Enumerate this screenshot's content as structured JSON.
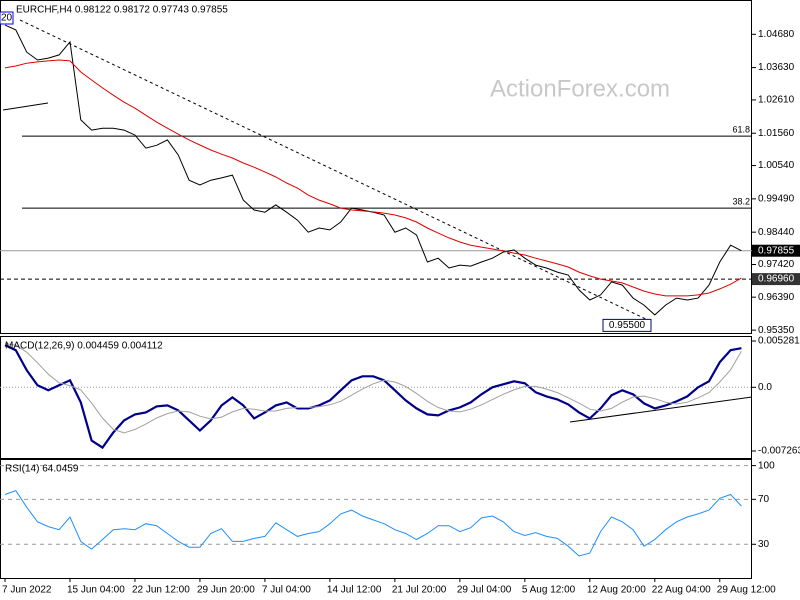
{
  "chart_data": [
    {
      "type": "line",
      "title": "EURCHF,H4  0.98122 0.98172 0.97743 0.97855",
      "corner_label": "20",
      "watermark": "ActionForex.com",
      "ylim": [
        0.9526,
        1.0573
      ],
      "yticks": [
        {
          "value": 1.0468,
          "label": "1.04680"
        },
        {
          "value": 1.0363,
          "label": "1.03630"
        },
        {
          "value": 1.0261,
          "label": "1.02610"
        },
        {
          "value": 1.0156,
          "label": "1.01560"
        },
        {
          "value": 1.0054,
          "label": "1.00540"
        },
        {
          "value": 0.9949,
          "label": "0.99490"
        },
        {
          "value": 0.9844,
          "label": "0.98440"
        },
        {
          "value": 0.9742,
          "label": "0.97420"
        },
        {
          "value": 0.9639,
          "label": "0.96390"
        },
        {
          "value": 0.9535,
          "label": "0.95350"
        }
      ],
      "series": [
        {
          "color": "#000000",
          "line_width": 1,
          "values": [
            1.0497,
            1.0482,
            1.0412,
            1.0387,
            1.0393,
            1.0403,
            1.0444,
            1.0198,
            1.0166,
            1.0172,
            1.0172,
            1.0166,
            1.015,
            1.0109,
            1.0118,
            1.0135,
            1.0087,
            1.0008,
            0.9993,
            1.0008,
            1.0015,
            1.0024,
            0.9945,
            0.9914,
            0.9907,
            0.993,
            0.9907,
            0.9882,
            0.9844,
            0.9857,
            0.9851,
            0.9876,
            0.992,
            0.9914,
            0.9907,
            0.9898,
            0.9844,
            0.9857,
            0.9835,
            0.975,
            0.9762,
            0.9731,
            0.974,
            0.9737,
            0.975,
            0.9762,
            0.9781,
            0.9788,
            0.9762,
            0.974,
            0.9731,
            0.9718,
            0.9709,
            0.9662,
            0.963,
            0.9646,
            0.9687,
            0.9677,
            0.9636,
            0.9614,
            0.9583,
            0.9614,
            0.9636,
            0.963,
            0.9636,
            0.9677,
            0.975,
            0.9803,
            0.97855
          ]
        },
        {
          "color": "#e00000",
          "line_width": 1,
          "values": [
            1.0362,
            1.0368,
            1.0377,
            1.0381,
            1.0384,
            1.0387,
            1.0384,
            1.0349,
            1.0324,
            1.0299,
            1.0276,
            1.0254,
            1.0235,
            1.0213,
            1.0191,
            1.0172,
            1.0153,
            1.0135,
            1.0119,
            1.0103,
            1.009,
            1.0078,
            1.0062,
            1.0049,
            1.0034,
            1.0018,
            0.9999,
            0.9983,
            0.9961,
            0.9945,
            0.9933,
            0.992,
            0.9914,
            0.9911,
            0.9908,
            0.9904,
            0.9898,
            0.9889,
            0.9876,
            0.9857,
            0.9841,
            0.9826,
            0.9813,
            0.9803,
            0.9797,
            0.9791,
            0.9785,
            0.9778,
            0.9772,
            0.9762,
            0.9753,
            0.9744,
            0.9734,
            0.9718,
            0.9706,
            0.9696,
            0.969,
            0.9684,
            0.9671,
            0.9658,
            0.9649,
            0.9643,
            0.9643,
            0.9643,
            0.9646,
            0.9652,
            0.9665,
            0.968,
            0.9699
          ]
        }
      ],
      "levels": [
        {
          "value": 0.97855,
          "label": "0.97855",
          "color": "#000000",
          "line_color": "#999999",
          "dashed": false
        },
        {
          "value": 0.9696,
          "label": "0.96960",
          "color": "#333333",
          "line_color": "#000000",
          "dashed": true
        }
      ],
      "fib_lines": [
        {
          "value": 1.0147,
          "label": "61.8"
        },
        {
          "value": 0.992,
          "label": "38.2"
        }
      ],
      "low_label": {
        "value": 0.955,
        "label": "0.95500"
      }
    },
    {
      "type": "line",
      "title": "MACD(12,26,9) 0.004459 0.004112",
      "ylim": [
        -0.008061,
        0.005737
      ],
      "zero_line": true,
      "yticks": [
        0.005281,
        {
          "value": 0,
          "label": "0.0"
        },
        -0.007263
      ],
      "series": [
        {
          "color": "#00008b",
          "line_width": 2.2,
          "values": [
            0.004809,
            0.004237,
            0.001947,
            0.000229,
            -0.000344,
            0.000229,
            0.000802,
            -0.001718,
            -0.006069,
            -0.00687,
            -0.005153,
            -0.003779,
            -0.003092,
            -0.002863,
            -0.002176,
            -0.002061,
            -0.002634,
            -0.003779,
            -0.004924,
            -0.003779,
            -0.002061,
            -0.001145,
            -0.002061,
            -0.00355,
            -0.002863,
            -0.002061,
            -0.001718,
            -0.002405,
            -0.002405,
            -0.002061,
            -0.001489,
            -0.000344,
            0.000802,
            0.00126,
            0.00126,
            0.000802,
            -0.000344,
            -0.001489,
            -0.002405,
            -0.003092,
            -0.003206,
            -0.002634,
            -0.00229,
            -0.001718,
            -0.000802,
            0,
            0.000344,
            0.000687,
            0.000458,
            -0.000573,
            -0.001031,
            -0.001374,
            -0.001947,
            -0.002863,
            -0.00355,
            -0.002405,
            -0.000916,
            -0.000344,
            -0.000802,
            -0.001832,
            -0.002405,
            -0.002061,
            -0.001603,
            -0.001031,
            0,
            0.000687,
            0.002863,
            0.004237,
            0.004459
          ]
        },
        {
          "color": "#a0a0a0",
          "line_width": 1,
          "values": [
            0.005,
            0.0048,
            0.004,
            0.0028,
            0.0015,
            0.0005,
            0.0002,
            -0.0003,
            -0.0018,
            -0.0035,
            -0.0048,
            -0.0052,
            -0.0048,
            -0.0042,
            -0.0035,
            -0.003,
            -0.0027,
            -0.0028,
            -0.0033,
            -0.0036,
            -0.0034,
            -0.0028,
            -0.0024,
            -0.0025,
            -0.0027,
            -0.0027,
            -0.0024,
            -0.0023,
            -0.0023,
            -0.0022,
            -0.002,
            -0.0016,
            -0.0009,
            -0.0002,
            0.0004,
            0.0008,
            0.0006,
            0.0001,
            -0.0007,
            -0.0016,
            -0.0023,
            -0.0027,
            -0.0028,
            -0.0025,
            -0.002,
            -0.0014,
            -0.0008,
            -0.0003,
            0.0001,
            0.0001,
            -0.0002,
            -0.0006,
            -0.0012,
            -0.0018,
            -0.0025,
            -0.0027,
            -0.0024,
            -0.0017,
            -0.0011,
            -0.001,
            -0.0013,
            -0.0017,
            -0.0019,
            -0.0017,
            -0.0012,
            -0.0006,
            0.0006,
            0.002,
            0.004112
          ]
        }
      ]
    },
    {
      "type": "line",
      "title": "RSI(14) 64.0459",
      "ylim": [
        0,
        105
      ],
      "grid": true,
      "yticks": [
        30,
        70,
        100
      ],
      "categories": [
        "7 Jun 2022",
        null,
        null,
        null,
        null,
        null,
        "15 Jun 04:00",
        null,
        null,
        null,
        null,
        null,
        "22 Jun 12:00",
        null,
        null,
        null,
        null,
        null,
        "29 Jun 20:00",
        null,
        null,
        null,
        null,
        null,
        "7 Jul 04:00",
        null,
        null,
        null,
        null,
        null,
        "14 Jul 12:00",
        null,
        null,
        null,
        null,
        null,
        "21 Jul 20:00",
        null,
        null,
        null,
        null,
        null,
        "29 Jul 04:00",
        null,
        null,
        null,
        null,
        null,
        "5 Aug 12:00",
        null,
        null,
        null,
        null,
        null,
        "12 Aug 20:00",
        null,
        null,
        null,
        null,
        null,
        "22 Aug 04:00",
        null,
        null,
        null,
        null,
        null,
        "29 Aug 12:00",
        null,
        null
      ],
      "series": [
        {
          "color": "#1e90ff",
          "line_width": 1,
          "values": [
            74.3,
            77.8,
            63.0,
            50.0,
            45.7,
            43.0,
            54.3,
            32.6,
            25.7,
            34.3,
            43.0,
            43.9,
            43.0,
            48.3,
            46.5,
            39.6,
            32.6,
            27.4,
            27.4,
            39.6,
            43.9,
            32.6,
            32.6,
            35.2,
            37.0,
            49.1,
            43.0,
            37.0,
            39.6,
            41.3,
            48.3,
            57.0,
            60.4,
            55.2,
            51.7,
            48.3,
            43.0,
            39.6,
            34.3,
            39.6,
            46.5,
            46.5,
            41.3,
            44.8,
            53.5,
            55.2,
            50.0,
            41.3,
            37.8,
            40.4,
            37.0,
            35.2,
            28.3,
            19.6,
            22.2,
            41.3,
            54.3,
            50.0,
            43.0,
            28.3,
            34.3,
            43.0,
            50.0,
            54.3,
            57.0,
            60.4,
            70.9,
            74.3,
            64.0459
          ]
        }
      ]
    }
  ]
}
